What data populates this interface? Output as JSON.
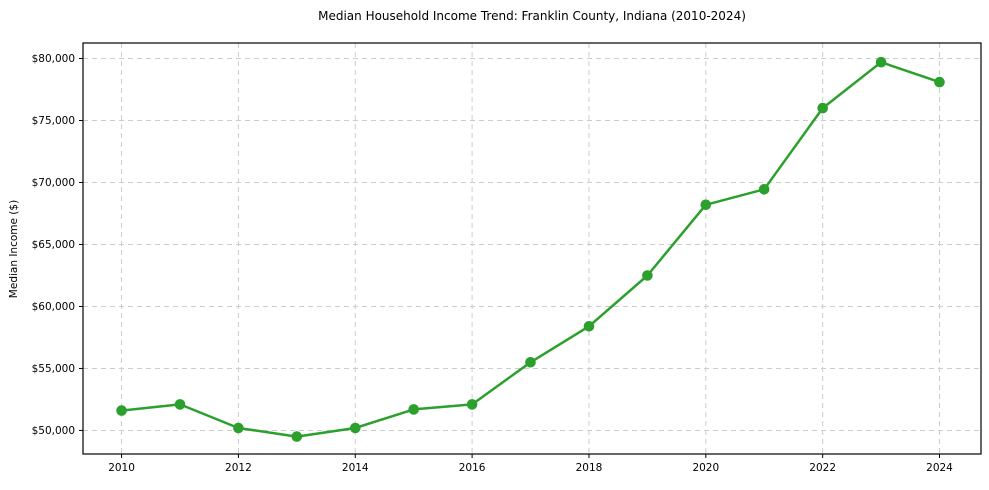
{
  "chart_data": {
    "type": "line",
    "title": "Median Household Income Trend: Franklin County, Indiana (2010-2024)",
    "xlabel": "",
    "ylabel": "Median Income ($)",
    "x": [
      2010,
      2011,
      2012,
      2013,
      2014,
      2015,
      2016,
      2017,
      2018,
      2019,
      2020,
      2021,
      2022,
      2023,
      2024
    ],
    "values": [
      51600,
      52100,
      50200,
      49500,
      50200,
      51700,
      52100,
      55500,
      58400,
      62500,
      68200,
      69450,
      76000,
      79700,
      78100
    ],
    "xlim": [
      2009.34,
      2024.71
    ],
    "ylim": [
      48100,
      81250
    ],
    "xticks": [
      {
        "v": 2010,
        "label": "2010"
      },
      {
        "v": 2012,
        "label": "2012"
      },
      {
        "v": 2014,
        "label": "2014"
      },
      {
        "v": 2016,
        "label": "2016"
      },
      {
        "v": 2018,
        "label": "2018"
      },
      {
        "v": 2020,
        "label": "2020"
      },
      {
        "v": 2022,
        "label": "2022"
      },
      {
        "v": 2024,
        "label": "2024"
      }
    ],
    "yticks": [
      {
        "v": 50000,
        "label": "$50,000"
      },
      {
        "v": 55000,
        "label": "$55,000"
      },
      {
        "v": 60000,
        "label": "$60,000"
      },
      {
        "v": 65000,
        "label": "$65,000"
      },
      {
        "v": 70000,
        "label": "$70,000"
      },
      {
        "v": 75000,
        "label": "$75,000"
      },
      {
        "v": 80000,
        "label": "$80,000"
      }
    ],
    "grid": true,
    "grid_style": "dashed",
    "legend": "none",
    "line_color": "#2ca02c",
    "marker_color": "#2ca02c",
    "grid_color": "#cccccc",
    "spine_color": "#000000",
    "background": "#ffffff"
  }
}
